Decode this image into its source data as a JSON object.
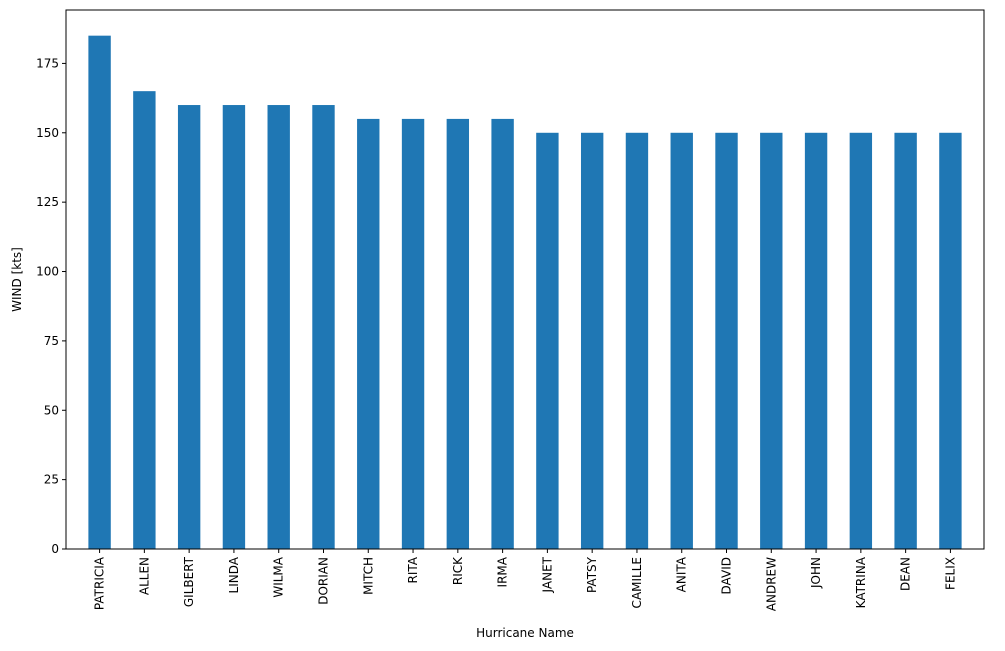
{
  "chart_data": {
    "type": "bar",
    "title": "",
    "xlabel": "Hurricane Name",
    "ylabel": "WIND [kts]",
    "categories": [
      "PATRICIA",
      "ALLEN",
      "GILBERT",
      "LINDA",
      "WILMA",
      "DORIAN",
      "MITCH",
      "RITA",
      "RICK",
      "IRMA",
      "JANET",
      "PATSY",
      "CAMILLE",
      "ANITA",
      "DAVID",
      "ANDREW",
      "JOHN",
      "KATRINA",
      "DEAN",
      "FELIX"
    ],
    "values": [
      185,
      165,
      160,
      160,
      160,
      160,
      155,
      155,
      155,
      155,
      150,
      150,
      150,
      150,
      150,
      150,
      150,
      150,
      150,
      150
    ],
    "ylim": [
      0,
      194.25
    ],
    "yticks": [
      0,
      25,
      50,
      75,
      100,
      125,
      150,
      175
    ],
    "bar_color": "#1f77b4",
    "grid": false,
    "legend": "none"
  }
}
